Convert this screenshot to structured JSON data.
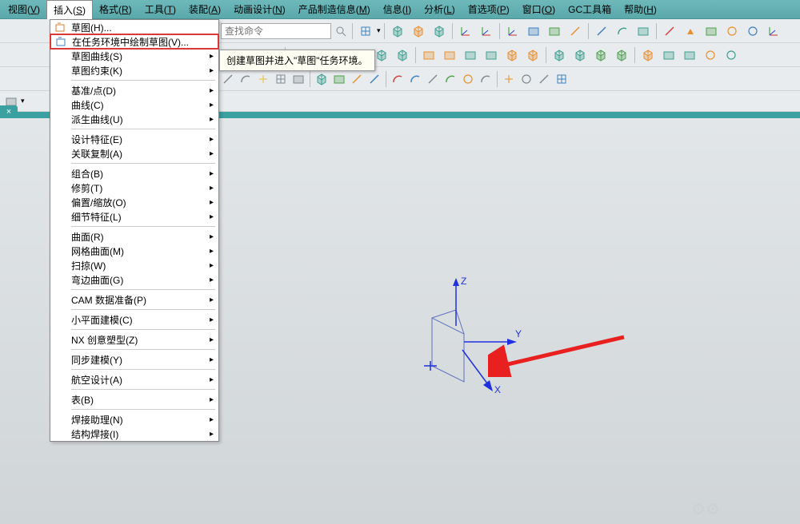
{
  "menubar": {
    "items": [
      {
        "label": "视图(V)",
        "u": "V"
      },
      {
        "label": "插入(S)",
        "u": "S",
        "active": true
      },
      {
        "label": "格式(R)",
        "u": "R"
      },
      {
        "label": "工具(T)",
        "u": "T"
      },
      {
        "label": "装配(A)",
        "u": "A"
      },
      {
        "label": "动画设计(N)",
        "u": "N"
      },
      {
        "label": "产品制造信息(M)",
        "u": "M"
      },
      {
        "label": "信息(I)",
        "u": "I"
      },
      {
        "label": "分析(L)",
        "u": "L"
      },
      {
        "label": "首选项(P)",
        "u": "P"
      },
      {
        "label": "窗口(O)",
        "u": "O"
      },
      {
        "label": "GC工具箱",
        "u": ""
      },
      {
        "label": "帮助(H)",
        "u": "H"
      }
    ]
  },
  "dropdown": {
    "items": [
      {
        "label": "草图(H)...",
        "hasIcon": true,
        "iconColor": "#d08030"
      },
      {
        "label": "在任务环境中绘制草图(V)...",
        "hasIcon": true,
        "iconColor": "#4080c0",
        "highlighted": true
      },
      {
        "label": "草图曲线(S)",
        "sub": true
      },
      {
        "label": "草图约束(K)",
        "sub": true
      },
      {
        "sep": true
      },
      {
        "label": "基准/点(D)",
        "sub": true
      },
      {
        "label": "曲线(C)",
        "sub": true
      },
      {
        "label": "派生曲线(U)",
        "sub": true
      },
      {
        "sep": true
      },
      {
        "label": "设计特征(E)",
        "sub": true
      },
      {
        "label": "关联复制(A)",
        "sub": true
      },
      {
        "sep": true
      },
      {
        "label": "组合(B)",
        "sub": true
      },
      {
        "label": "修剪(T)",
        "sub": true
      },
      {
        "label": "偏置/缩放(O)",
        "sub": true
      },
      {
        "label": "细节特征(L)",
        "sub": true
      },
      {
        "sep": true
      },
      {
        "label": "曲面(R)",
        "sub": true
      },
      {
        "label": "网格曲面(M)",
        "sub": true
      },
      {
        "label": "扫掠(W)",
        "sub": true
      },
      {
        "label": "弯边曲面(G)",
        "sub": true
      },
      {
        "sep": true
      },
      {
        "label": "CAM 数据准备(P)",
        "sub": true
      },
      {
        "sep": true
      },
      {
        "label": "小平面建模(C)",
        "sub": true
      },
      {
        "sep": true
      },
      {
        "label": "NX 创意塑型(Z)",
        "sub": true
      },
      {
        "sep": true
      },
      {
        "label": "同步建模(Y)",
        "sub": true
      },
      {
        "sep": true
      },
      {
        "label": "航空设计(A)",
        "sub": true
      },
      {
        "sep": true
      },
      {
        "label": "表(B)",
        "sub": true
      },
      {
        "sep": true
      },
      {
        "label": "焊接助理(N)",
        "sub": true
      },
      {
        "label": "结构焊接(I)",
        "sub": true
      }
    ]
  },
  "tooltip": "创建草图并进入\"草图\"任务环境。",
  "search_placeholder": "查找命令",
  "left_tab": "×",
  "axis": {
    "labels": {
      "x": "X",
      "y": "Y",
      "z": "Z"
    },
    "color_x": "#2030e0",
    "color_y": "#2030e0",
    "color_z": "#2030e0",
    "origin_marker": "#2030e0",
    "wire_color": "#6070c0"
  },
  "arrow": {
    "color": "#e82020"
  },
  "toolbar_colors": {
    "orange": "#e89030",
    "teal": "#40a090",
    "blue": "#4080c0",
    "green": "#50a050",
    "yellow": "#e8c040",
    "red": "#d04040",
    "purple": "#8050c0",
    "gray": "#808890"
  }
}
